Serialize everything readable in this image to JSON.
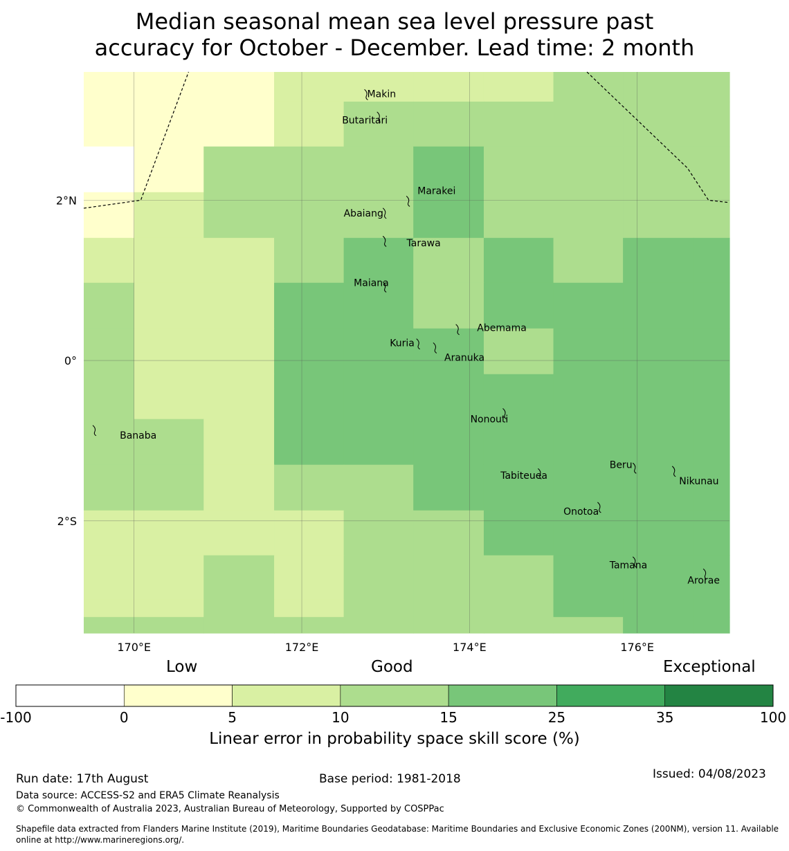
{
  "title_lines": [
    "Median seasonal mean sea level pressure past",
    "accuracy for October - December. Lead time: 2 month"
  ],
  "map": {
    "lon_range": [
      169.4,
      177.1
    ],
    "lat_range": [
      -3.4,
      3.6
    ],
    "lon_ticks": [
      {
        "value": 170,
        "label": "170°E"
      },
      {
        "value": 172,
        "label": "172°E"
      },
      {
        "value": 174,
        "label": "174°E"
      },
      {
        "value": 176,
        "label": "176°E"
      }
    ],
    "lat_ticks": [
      {
        "value": 2,
        "label": "2°N"
      },
      {
        "value": 0,
        "label": "0°"
      },
      {
        "value": -2,
        "label": "2°S"
      }
    ],
    "grid_columns_lon": [
      169.4,
      170.0,
      170.83,
      171.67,
      172.5,
      173.33,
      174.17,
      175.0,
      175.83,
      176.67,
      177.1
    ],
    "grid_rows_lat": [
      3.6,
      3.23,
      2.67,
      2.1,
      1.53,
      0.97,
      0.4,
      -0.17,
      -0.73,
      -1.3,
      -1.87,
      -2.43,
      -2.98,
      -3.2,
      -3.4
    ],
    "skill_categories": [
      "white",
      "0-5",
      "5-10",
      "10-15",
      "15-25",
      "25-35",
      "35-100"
    ],
    "cell_classes": [
      [
        1,
        1,
        1,
        2,
        2,
        2,
        2,
        3,
        3,
        3
      ],
      [
        1,
        1,
        1,
        2,
        3,
        3,
        3,
        3,
        3,
        3
      ],
      [
        0,
        1,
        3,
        3,
        3,
        4,
        3,
        3,
        3,
        3
      ],
      [
        1,
        2,
        3,
        3,
        3,
        4,
        3,
        3,
        3,
        3
      ],
      [
        2,
        2,
        2,
        3,
        4,
        3,
        4,
        3,
        4,
        4
      ],
      [
        3,
        2,
        2,
        4,
        4,
        3,
        4,
        4,
        4,
        4
      ],
      [
        3,
        2,
        2,
        4,
        4,
        4,
        3,
        4,
        4,
        4
      ],
      [
        3,
        2,
        2,
        4,
        4,
        4,
        4,
        4,
        4,
        4
      ],
      [
        3,
        3,
        2,
        4,
        4,
        4,
        4,
        4,
        4,
        4
      ],
      [
        3,
        3,
        2,
        3,
        3,
        4,
        4,
        4,
        4,
        4
      ],
      [
        2,
        2,
        2,
        2,
        3,
        3,
        4,
        4,
        4,
        4
      ],
      [
        2,
        2,
        3,
        2,
        3,
        3,
        3,
        4,
        4,
        4
      ],
      [
        2,
        2,
        3,
        2,
        3,
        3,
        3,
        4,
        4,
        4
      ],
      [
        3,
        3,
        3,
        3,
        3,
        3,
        3,
        3,
        4,
        4
      ]
    ],
    "boundaries": [
      [
        [
          169.4,
          1.9
        ],
        [
          170.08,
          2.0
        ],
        [
          170.65,
          3.6
        ]
      ],
      [
        [
          175.4,
          3.6
        ],
        [
          176.6,
          2.4
        ],
        [
          176.85,
          2.0
        ],
        [
          177.1,
          1.97
        ]
      ]
    ],
    "islands": [
      {
        "name": "Makin",
        "lon": 172.78,
        "lat": 3.33,
        "label_lon": 172.78,
        "label_lat": 3.33
      },
      {
        "name": "Butaritari",
        "lon": 172.93,
        "lat": 3.05,
        "label_lon": 172.48,
        "label_lat": 3.0
      },
      {
        "name": "Marakei",
        "lon": 173.28,
        "lat": 2.0,
        "label_lon": 173.38,
        "label_lat": 2.12
      },
      {
        "name": "Abaiang",
        "lon": 173.0,
        "lat": 1.85,
        "label_lon": 172.5,
        "label_lat": 1.84
      },
      {
        "name": "Tarawa",
        "lon": 173.0,
        "lat": 1.5,
        "label_lon": 173.25,
        "label_lat": 1.47
      },
      {
        "name": "Maiana",
        "lon": 173.0,
        "lat": 0.93,
        "label_lon": 172.62,
        "label_lat": 0.97
      },
      {
        "name": "Abemama",
        "lon": 173.87,
        "lat": 0.4,
        "label_lon": 174.09,
        "label_lat": 0.41
      },
      {
        "name": "Kuria",
        "lon": 173.4,
        "lat": 0.22,
        "label_lon": 173.05,
        "label_lat": 0.22
      },
      {
        "name": "Aranuka",
        "lon": 173.6,
        "lat": 0.17,
        "label_lon": 173.7,
        "label_lat": 0.04
      },
      {
        "name": "Nonouti",
        "lon": 174.43,
        "lat": -0.65,
        "label_lon": 174.01,
        "label_lat": -0.73
      },
      {
        "name": "Banaba",
        "lon": 169.54,
        "lat": -0.86,
        "label_lon": 169.83,
        "label_lat": -0.93
      },
      {
        "name": "Tabiteuea",
        "lon": 174.85,
        "lat": -1.4,
        "label_lon": 174.37,
        "label_lat": -1.43
      },
      {
        "name": "Beru",
        "lon": 175.98,
        "lat": -1.33,
        "label_lon": 175.67,
        "label_lat": -1.3
      },
      {
        "name": "Nikunau",
        "lon": 176.45,
        "lat": -1.37,
        "label_lon": 176.5,
        "label_lat": -1.5
      },
      {
        "name": "Onotoa",
        "lon": 175.56,
        "lat": -1.82,
        "label_lon": 175.12,
        "label_lat": -1.88
      },
      {
        "name": "Tamana",
        "lon": 175.98,
        "lat": -2.5,
        "label_lon": 175.67,
        "label_lat": -2.55
      },
      {
        "name": "Arorae",
        "lon": 176.82,
        "lat": -2.65,
        "label_lon": 176.6,
        "label_lat": -2.74
      }
    ]
  },
  "colorbar": {
    "category_labels": {
      "low": "Low",
      "good": "Good",
      "exceptional": "Exceptional"
    },
    "ticks": [
      "-100",
      "0",
      "5",
      "10",
      "15",
      "25",
      "35",
      "100"
    ],
    "colors": [
      "#ffffff",
      "#ffffcc",
      "#d9f0a3",
      "#addd8e",
      "#78c679",
      "#41ab5d",
      "#238443"
    ],
    "title": "Linear error in probability space skill score (%)"
  },
  "colors": {
    "white": "#ffffff",
    "c0_5": "#ffffcc",
    "c5_10": "#d9f0a3",
    "c10_15": "#addd8e",
    "c15_25": "#78c679",
    "c25_35": "#41ab5d",
    "c35_100": "#238443"
  },
  "footer": {
    "run_date": "Run date: 17th August",
    "base_period": "Base period: 1981-2018",
    "issued": "Issued: 04/08/2023",
    "data_source": "Data source: ACCESS-S2 and ERA5 Climate Reanalysis",
    "copyright": "© Commonwealth of Australia 2023, Australian Bureau of Meteorology, Supported by COSPPac",
    "shapefile_line1": "Shapefile data extracted from Flanders Marine Institute (2019), Maritime Boundaries Geodatabase: Maritime Boundaries and Exclusive Economic Zones (200NM), version 11. Available",
    "shapefile_line2": "online at http://www.marineregions.org/."
  }
}
